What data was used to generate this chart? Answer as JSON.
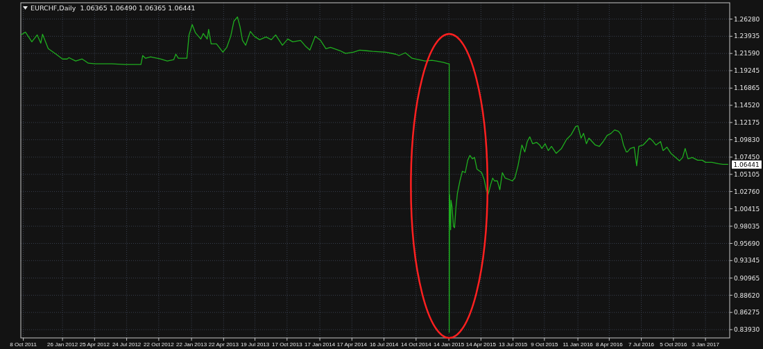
{
  "chart_data": {
    "type": "line",
    "title": "EURCHF,Daily  1.06365 1.06490 1.06365 1.06441",
    "series": [
      {
        "color": "#1fae1f",
        "x": [
          "2011-10-01",
          "2011-10-14",
          "2011-11-01",
          "2011-11-16",
          "2011-11-26",
          "2011-12-01",
          "2011-12-17",
          "2012-01-08",
          "2012-01-26",
          "2012-02-08",
          "2012-02-13",
          "2012-03-03",
          "2012-03-15",
          "2012-03-21",
          "2012-03-30",
          "2012-04-07",
          "2012-04-27",
          "2012-06-12",
          "2012-07-19",
          "2012-09-02",
          "2012-09-07",
          "2012-09-15",
          "2012-09-29",
          "2012-10-27",
          "2012-11-15",
          "2012-12-03",
          "2012-12-09",
          "2012-12-16",
          "2013-01-09",
          "2013-01-15",
          "2013-01-24",
          "2013-02-02",
          "2013-02-17",
          "2013-02-24",
          "2013-03-07",
          "2013-03-11",
          "2013-03-18",
          "2013-04-02",
          "2013-04-20",
          "2013-05-01",
          "2013-05-12",
          "2013-05-21",
          "2013-05-31",
          "2013-06-07",
          "2013-06-14",
          "2013-06-23",
          "2013-07-06",
          "2013-07-17",
          "2013-08-01",
          "2013-08-19",
          "2013-09-03",
          "2013-09-15",
          "2013-10-04",
          "2013-10-19",
          "2013-11-02",
          "2013-11-24",
          "2013-12-09",
          "2013-12-20",
          "2014-01-04",
          "2014-01-19",
          "2014-02-03",
          "2014-02-16",
          "2014-03-15",
          "2014-03-30",
          "2014-04-21",
          "2014-05-09",
          "2014-05-27",
          "2014-06-14",
          "2014-07-21",
          "2014-08-18",
          "2014-08-27",
          "2014-09-14",
          "2014-10-03",
          "2014-10-21",
          "2014-11-08",
          "2014-11-27",
          "2014-12-10",
          "2014-12-30",
          "2015-01-12",
          "2015-01-15",
          "2015-01-15",
          "2015-01-16",
          "2015-01-19",
          "2015-01-20",
          "2015-01-23",
          "2015-01-27",
          "2015-01-30",
          "2015-02-03",
          "2015-02-07",
          "2015-02-14",
          "2015-02-21",
          "2015-03-01",
          "2015-03-08",
          "2015-03-14",
          "2015-03-21",
          "2015-03-27",
          "2015-04-03",
          "2015-04-16",
          "2015-04-23",
          "2015-04-29",
          "2015-05-04",
          "2015-05-11",
          "2015-05-17",
          "2015-05-22",
          "2015-05-30",
          "2015-06-06",
          "2015-06-13",
          "2015-06-21",
          "2015-07-02",
          "2015-07-11",
          "2015-07-18",
          "2015-07-27",
          "2015-08-07",
          "2015-08-15",
          "2015-08-22",
          "2015-08-29",
          "2015-09-06",
          "2015-09-17",
          "2015-09-26",
          "2015-10-02",
          "2015-10-11",
          "2015-10-20",
          "2015-10-29",
          "2015-11-11",
          "2015-11-26",
          "2015-12-10",
          "2015-12-23",
          "2016-01-05",
          "2016-01-11",
          "2016-01-20",
          "2016-01-27",
          "2016-02-04",
          "2016-02-11",
          "2016-02-20",
          "2016-02-29",
          "2016-03-11",
          "2016-03-22",
          "2016-04-02",
          "2016-04-13",
          "2016-04-23",
          "2016-05-04",
          "2016-05-11",
          "2016-05-18",
          "2016-05-26",
          "2016-05-29",
          "2016-06-06",
          "2016-06-17",
          "2016-06-24",
          "2016-06-30",
          "2016-07-12",
          "2016-07-21",
          "2016-07-30",
          "2016-08-08",
          "2016-08-17",
          "2016-08-30",
          "2016-09-06",
          "2016-09-17",
          "2016-09-28",
          "2016-10-11",
          "2016-10-22",
          "2016-10-31",
          "2016-11-07",
          "2016-11-15",
          "2016-11-27",
          "2016-12-12",
          "2016-12-25",
          "2017-01-03",
          "2017-01-21",
          "2017-02-08",
          "2017-02-21",
          "2017-03-07"
        ],
        "values": [
          1.2412,
          1.245,
          1.2318,
          1.2412,
          1.2299,
          1.2421,
          1.2224,
          1.2149,
          1.2083,
          1.2083,
          1.2102,
          1.2055,
          1.2074,
          1.2083,
          1.2055,
          1.2027,
          1.2018,
          1.2018,
          1.2008,
          1.2008,
          1.213,
          1.2093,
          1.2112,
          1.2083,
          1.2055,
          1.2074,
          1.2149,
          1.2093,
          1.2093,
          1.2412,
          1.2553,
          1.244,
          1.2356,
          1.2431,
          1.2356,
          1.2487,
          1.229,
          1.229,
          1.2177,
          1.2243,
          1.2393,
          1.26,
          1.2656,
          1.2525,
          1.2337,
          1.2271,
          1.2459,
          1.2393,
          1.2346,
          1.2384,
          1.2346,
          1.2412,
          1.2271,
          1.2356,
          1.2318,
          1.2337,
          1.2252,
          1.2205,
          1.2393,
          1.2337,
          1.2224,
          1.2243,
          1.2196,
          1.2159,
          1.2177,
          1.2205,
          1.2196,
          1.2187,
          1.2177,
          1.2149,
          1.213,
          1.2168,
          1.2093,
          1.2074,
          1.2055,
          1.2065,
          1.2055,
          1.2036,
          1.2018,
          1.2018,
          0.8356,
          1.0234,
          0.9755,
          1.0158,
          1.0065,
          0.9802,
          0.9783,
          1.0065,
          1.0252,
          1.0421,
          1.0553,
          1.0534,
          1.0703,
          1.0769,
          1.0722,
          1.0741,
          1.0581,
          1.0534,
          1.044,
          1.0299,
          1.0234,
          1.0365,
          1.0459,
          1.0421,
          1.0421,
          1.0299,
          1.0534,
          1.0459,
          1.044,
          1.0421,
          1.0459,
          1.0628,
          1.091,
          1.0816,
          1.0957,
          1.1022,
          1.0928,
          1.0947,
          1.091,
          1.0863,
          1.0928,
          1.0835,
          1.0891,
          1.0797,
          1.0863,
          1.0985,
          1.105,
          1.1163,
          1.1173,
          1.1004,
          1.1069,
          1.0928,
          1.1004,
          1.0957,
          1.091,
          1.0891,
          1.0957,
          1.1041,
          1.1069,
          1.1116,
          1.1097,
          1.105,
          1.091,
          1.0816,
          1.0816,
          1.0863,
          1.0881,
          1.0628,
          1.0891,
          1.091,
          1.0957,
          1.1004,
          1.0966,
          1.091,
          1.0957,
          1.0835,
          1.0881,
          1.0797,
          1.0741,
          1.0694,
          1.0741,
          1.0863,
          1.0722,
          1.0741,
          1.0703,
          1.0703,
          1.0675,
          1.0675,
          1.0656,
          1.0647,
          1.0647
        ]
      }
    ],
    "xlim": [
      "2011-10-01",
      "2017-03-12"
    ],
    "xticks": [
      {
        "value": "2011-10-08",
        "label": "8 Oct 2011"
      },
      {
        "value": "2012-01-26",
        "label": "26 Jan 2012"
      },
      {
        "value": "2012-04-25",
        "label": "25 Apr 2012"
      },
      {
        "value": "2012-07-24",
        "label": "24 Jul 2012"
      },
      {
        "value": "2012-10-22",
        "label": "22 Oct 2012"
      },
      {
        "value": "2013-01-22",
        "label": "22 Jan 2013"
      },
      {
        "value": "2013-04-22",
        "label": "22 Apr 2013"
      },
      {
        "value": "2013-07-19",
        "label": "19 Jul 2013"
      },
      {
        "value": "2013-10-17",
        "label": "17 Oct 2013"
      },
      {
        "value": "2014-01-17",
        "label": "17 Jan 2014"
      },
      {
        "value": "2014-04-17",
        "label": "17 Apr 2014"
      },
      {
        "value": "2014-07-16",
        "label": "16 Jul 2014"
      },
      {
        "value": "2014-10-14",
        "label": "14 Oct 2014"
      },
      {
        "value": "2015-01-14",
        "label": "14 Jan 2015"
      },
      {
        "value": "2015-04-14",
        "label": "14 Apr 2015"
      },
      {
        "value": "2015-07-13",
        "label": "13 Jul 2015"
      },
      {
        "value": "2015-10-09",
        "label": "9 Oct 2015"
      },
      {
        "value": "2016-01-11",
        "label": "11 Jan 2016"
      },
      {
        "value": "2016-04-08",
        "label": "8 Apr 2016"
      },
      {
        "value": "2016-07-07",
        "label": "7 Jul 2016"
      },
      {
        "value": "2016-10-05",
        "label": "5 Oct 2016"
      },
      {
        "value": "2017-01-03",
        "label": "3 Jan 2017"
      }
    ],
    "ylim": [
      0.828,
      1.285
    ],
    "yticks": [
      {
        "value": 0.8393,
        "label": "0.83930"
      },
      {
        "value": 0.86275,
        "label": "0.86275"
      },
      {
        "value": 0.8862,
        "label": "0.88620"
      },
      {
        "value": 0.90965,
        "label": "0.90965"
      },
      {
        "value": 0.93345,
        "label": "0.93345"
      },
      {
        "value": 0.9569,
        "label": "0.95690"
      },
      {
        "value": 0.98035,
        "label": "0.98035"
      },
      {
        "value": 1.00415,
        "label": "1.00415"
      },
      {
        "value": 1.0276,
        "label": "1.02760"
      },
      {
        "value": 1.05105,
        "label": "1.05105"
      },
      {
        "value": 1.0745,
        "label": "1.07450"
      },
      {
        "value": 1.0983,
        "label": "1.09830"
      },
      {
        "value": 1.12175,
        "label": "1.12175"
      },
      {
        "value": 1.1452,
        "label": "1.14520"
      },
      {
        "value": 1.16865,
        "label": "1.16865"
      },
      {
        "value": 1.19245,
        "label": "1.19245"
      },
      {
        "value": 1.2159,
        "label": "1.21590"
      },
      {
        "value": 1.23935,
        "label": "1.23935"
      },
      {
        "value": 1.2628,
        "label": "1.26280"
      }
    ],
    "annotations": [
      {
        "text": "1.06441",
        "x": "2017-03-07",
        "y": 1.06441
      }
    ],
    "grid": true
  }
}
